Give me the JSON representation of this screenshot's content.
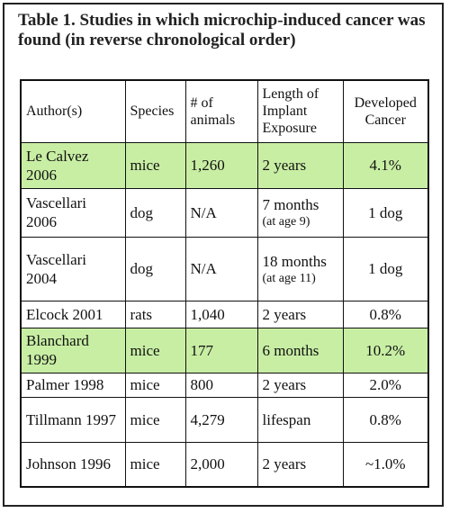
{
  "title": "Table 1. Studies in which microchip-induced cancer was found (in reverse chronological order)",
  "table": {
    "header": [
      "Author(s)",
      "Species",
      "# of animals",
      "Length of Implant Exposure",
      "Developed Cancer"
    ],
    "highlight_color": "#c8eea4",
    "rows": [
      {
        "cells": [
          "Le Calvez 2006",
          "mice",
          "1,260",
          "2 years",
          "4.1%"
        ],
        "highlight": true
      },
      {
        "cells": [
          "Vascellari 2006",
          "dog",
          "N/A",
          "7 months",
          "1 dog"
        ],
        "note": "(at age 9)",
        "highlight": false
      },
      {
        "cells": [
          "Vascellari 2004",
          "dog",
          "N/A",
          "18 months",
          "1 dog"
        ],
        "note": "(at age 11)",
        "highlight": false
      },
      {
        "cells": [
          "Elcock 2001",
          "rats",
          "1,040",
          "2 years",
          "0.8%"
        ],
        "highlight": false
      },
      {
        "cells": [
          "Blanchard 1999",
          "mice",
          "177",
          "6 months",
          "10.2%"
        ],
        "highlight": true
      },
      {
        "cells": [
          "Palmer 1998",
          "mice",
          "800",
          "2 years",
          "2.0%"
        ],
        "highlight": false
      },
      {
        "cells": [
          "Tillmann 1997",
          "mice",
          "4,279",
          "lifespan",
          "0.8%"
        ],
        "highlight": false
      },
      {
        "cells": [
          "Johnson 1996",
          "mice",
          "2,000",
          "2 years",
          "~1.0%"
        ],
        "highlight": false
      }
    ]
  }
}
